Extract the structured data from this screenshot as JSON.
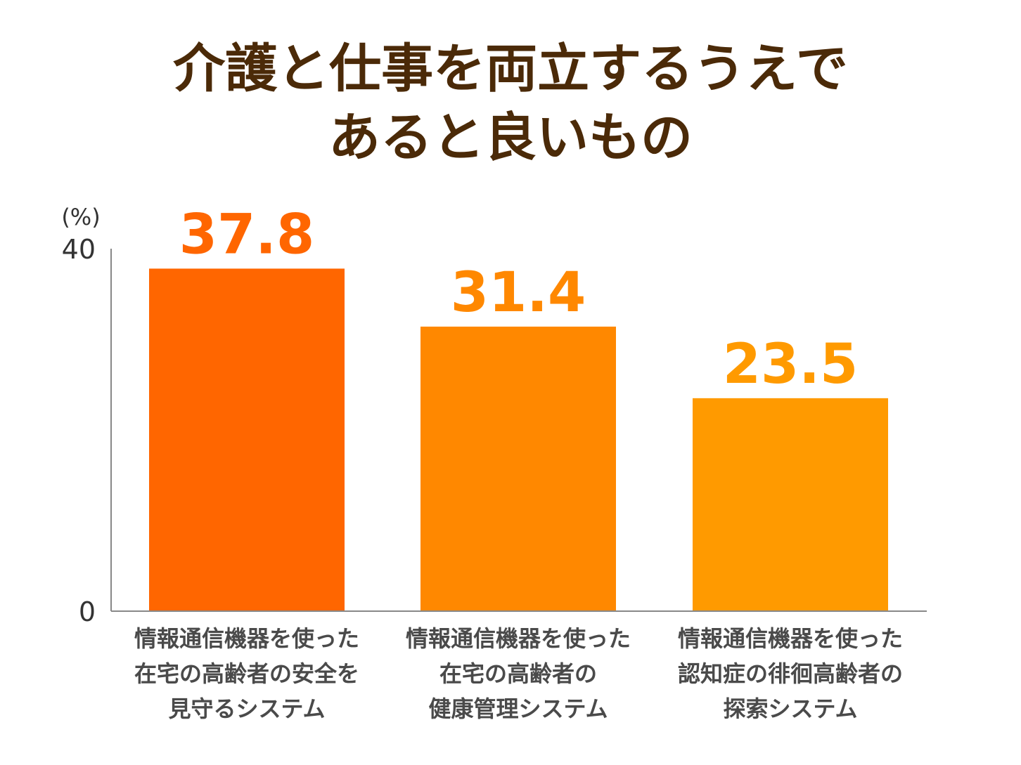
{
  "title_lines": [
    "介護と仕事を両立するうえで",
    "あると良いもの"
  ],
  "chart_data": {
    "type": "bar",
    "title": "介護と仕事を両立するうえであると良いもの",
    "unit_label": "(%)",
    "ylim": [
      0,
      40
    ],
    "yticks": [
      "0",
      "40"
    ],
    "categories": [
      "情報通信機器を使った在宅の高齢者の安全を見守るシステム",
      "情報通信機器を使った在宅の高齢者の健康管理システム",
      "情報通信機器を使った認知症の徘徊高齢者の探索システム"
    ],
    "category_lines": [
      [
        "情報通信機器を使った",
        "在宅の高齢者の安全を",
        "見守るシステム"
      ],
      [
        "情報通信機器を使った",
        "在宅の高齢者の",
        "健康管理システム"
      ],
      [
        "情報通信機器を使った",
        "認知症の徘徊高齢者の",
        "探索システム"
      ]
    ],
    "values": [
      37.8,
      31.4,
      23.5
    ],
    "value_labels": [
      "37.8",
      "31.4",
      "23.5"
    ],
    "bar_colors": [
      "#ff6600",
      "#ff8800",
      "#ff9a00"
    ],
    "axis_color": "#888888",
    "grid": false
  }
}
